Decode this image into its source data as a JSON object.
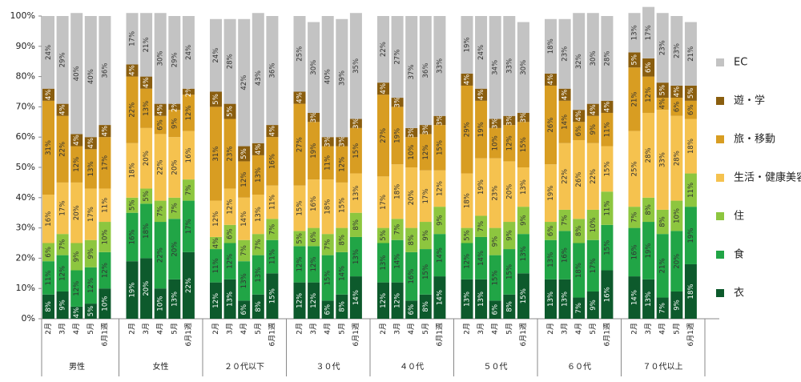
{
  "chart_data": {
    "type": "stacked_bar",
    "groups": [
      "男性",
      "女性",
      "２０代以下",
      "３０代",
      "４０代",
      "５０代",
      "６０代",
      "７０代以上"
    ],
    "categories": [
      "2月",
      "3月",
      "4月",
      "5月",
      "6月1週",
      "2月",
      "3月",
      "4月",
      "5月",
      "6月1週",
      "2月",
      "3月",
      "4月",
      "5月",
      "6月1週",
      "2月",
      "3月",
      "4月",
      "5月",
      "6月1週",
      "2月",
      "3月",
      "4月",
      "5月",
      "6月1週",
      "2月",
      "3月",
      "4月",
      "5月",
      "6月1週",
      "2月",
      "3月",
      "4月",
      "5月",
      "6月1週",
      "2月",
      "3月",
      "4月",
      "5月",
      "6月1週"
    ],
    "ylim": [
      0,
      100
    ],
    "yticks": [
      {
        "value": 0,
        "label": "0%"
      },
      {
        "value": 10,
        "label": "10%"
      },
      {
        "value": 20,
        "label": "20%"
      },
      {
        "value": 30,
        "label": "30%"
      },
      {
        "value": 40,
        "label": "40%"
      },
      {
        "value": 50,
        "label": "50%"
      },
      {
        "value": 60,
        "label": "60%"
      },
      {
        "value": 70,
        "label": "70%"
      },
      {
        "value": 80,
        "label": "80%"
      },
      {
        "value": 90,
        "label": "90%"
      },
      {
        "value": 100,
        "label": "100%"
      }
    ],
    "series": [
      {
        "name": "衣",
        "color": "#0d5a2c",
        "values": [
          8,
          9,
          4,
          5,
          10,
          19,
          20,
          10,
          13,
          22,
          12,
          13,
          6,
          8,
          15,
          12,
          12,
          6,
          8,
          14,
          12,
          12,
          6,
          8,
          14,
          13,
          13,
          6,
          8,
          15,
          13,
          13,
          7,
          9,
          16,
          14,
          13,
          7,
          9,
          18
        ],
        "value_labels": [
          "8%",
          "9%",
          "4%",
          "5%",
          "10%",
          "19%",
          "20%",
          "10%",
          "13%",
          "22%",
          "12%",
          "13%",
          "6%",
          "8%",
          "15%",
          "12%",
          "12%",
          "6%",
          "8%",
          "14%",
          "12%",
          "12%",
          "6%",
          "8%",
          "14%",
          "13%",
          "13%",
          "6%",
          "8%",
          "15%",
          "13%",
          "13%",
          "7%",
          "9%",
          "16%",
          "14%",
          "13%",
          "7%",
          "9%",
          "18%"
        ]
      },
      {
        "name": "食",
        "color": "#21a546",
        "values": [
          11,
          12,
          12,
          12,
          12,
          16,
          18,
          22,
          20,
          17,
          11,
          12,
          13,
          13,
          11,
          12,
          12,
          15,
          14,
          13,
          13,
          14,
          16,
          15,
          14,
          12,
          14,
          15,
          15,
          13,
          13,
          16,
          18,
          17,
          15,
          16,
          19,
          21,
          20,
          19
        ],
        "value_labels": [
          "11%",
          "12%",
          "12%",
          "12%",
          "12%",
          "16%",
          "18%",
          "22%",
          "20%",
          "17%",
          "11%",
          "12%",
          "13%",
          "13%",
          "11%",
          "12%",
          "12%",
          "15%",
          "14%",
          "13%",
          "13%",
          "14%",
          "16%",
          "15%",
          "14%",
          "12%",
          "14%",
          "15%",
          "15%",
          "13%",
          "13%",
          "16%",
          "18%",
          "17%",
          "15%",
          "16%",
          "19%",
          "21%",
          "20%",
          "19%"
        ]
      },
      {
        "name": "住",
        "color": "#8dc63f",
        "values": [
          6,
          7,
          9,
          9,
          10,
          5,
          5,
          7,
          7,
          7,
          4,
          6,
          7,
          7,
          7,
          5,
          6,
          7,
          8,
          8,
          5,
          7,
          8,
          9,
          9,
          5,
          7,
          9,
          9,
          9,
          6,
          7,
          8,
          10,
          11,
          7,
          8,
          8,
          10,
          11
        ],
        "value_labels": [
          "6%",
          "7%",
          "9%",
          "9%",
          "10%",
          "5%",
          "5%",
          "7%",
          "7%",
          "7%",
          "4%",
          "6%",
          "7%",
          "7%",
          "7%",
          "5%",
          "6%",
          "7%",
          "8%",
          "8%",
          "5%",
          "7%",
          "8%",
          "9%",
          "9%",
          "5%",
          "7%",
          "9%",
          "9%",
          "9%",
          "6%",
          "7%",
          "8%",
          "10%",
          "11%",
          "7%",
          "8%",
          "8%",
          "10%",
          "11%"
        ]
      },
      {
        "name": "生活・健康美容",
        "color": "#f5c24f",
        "values": [
          16,
          17,
          20,
          17,
          11,
          18,
          20,
          22,
          20,
          16,
          12,
          12,
          14,
          13,
          11,
          15,
          16,
          18,
          15,
          13,
          17,
          18,
          20,
          17,
          12,
          18,
          19,
          23,
          20,
          13,
          19,
          22,
          26,
          22,
          15,
          25,
          28,
          33,
          28,
          18
        ],
        "value_labels": [
          "16%",
          "17%",
          "20%",
          "17%",
          "11%",
          "18%",
          "20%",
          "22%",
          "20%",
          "16%",
          "12%",
          "12%",
          "14%",
          "13%",
          "11%",
          "15%",
          "16%",
          "18%",
          "15%",
          "13%",
          "17%",
          "18%",
          "20%",
          "17%",
          "12%",
          "18%",
          "19%",
          "23%",
          "20%",
          "13%",
          "19%",
          "22%",
          "26%",
          "22%",
          "15%",
          "25%",
          "28%",
          "33%",
          "28%",
          "18%"
        ]
      },
      {
        "name": "旅・移動",
        "color": "#d89d22",
        "values": [
          31,
          22,
          12,
          13,
          17,
          22,
          13,
          6,
          9,
          12,
          31,
          23,
          12,
          13,
          16,
          27,
          19,
          11,
          12,
          15,
          27,
          19,
          10,
          12,
          15,
          29,
          19,
          10,
          12,
          15,
          26,
          14,
          6,
          9,
          11,
          21,
          12,
          4,
          6,
          6
        ],
        "value_labels": [
          "31%",
          "22%",
          "12%",
          "13%",
          "17%",
          "22%",
          "13%",
          "6%",
          "9%",
          "12%",
          "31%",
          "23%",
          "12%",
          "13%",
          "16%",
          "27%",
          "19%",
          "11%",
          "12%",
          "15%",
          "27%",
          "19%",
          "10%",
          "12%",
          "15%",
          "29%",
          "19%",
          "10%",
          "12%",
          "15%",
          "26%",
          "14%",
          "6%",
          "9%",
          "11%",
          "21%",
          "12%",
          "4%",
          "6%",
          "6%"
        ]
      },
      {
        "name": "遊・学",
        "color": "#8a5e0f",
        "values": [
          4,
          4,
          4,
          4,
          4,
          4,
          4,
          4,
          2,
          2,
          5,
          5,
          5,
          4,
          4,
          4,
          3,
          3,
          3,
          3,
          4,
          3,
          3,
          3,
          3,
          4,
          4,
          3,
          3,
          3,
          4,
          4,
          4,
          4,
          4,
          5,
          6,
          5,
          4,
          5
        ],
        "value_labels": [
          "4%",
          "4%",
          "4%",
          "4%",
          "4%",
          "4%",
          "4%",
          "4%",
          "2%",
          "2%",
          "5%",
          "5%",
          "5%",
          "4%",
          "4%",
          "4%",
          "3%",
          "3%",
          "3%",
          "3%",
          "4%",
          "3%",
          "3%",
          "3%",
          "3%",
          "4%",
          "4%",
          "3%",
          "3%",
          "3%",
          "4%",
          "4%",
          "4%",
          "4%",
          "4%",
          "5%",
          "6%",
          "5%",
          "4%",
          "5%"
        ]
      },
      {
        "name": "EC",
        "color": "#c3c3c3",
        "values": [
          24,
          29,
          40,
          40,
          36,
          17,
          21,
          30,
          29,
          24,
          24,
          28,
          42,
          43,
          36,
          25,
          30,
          40,
          39,
          35,
          22,
          27,
          37,
          36,
          33,
          19,
          24,
          34,
          33,
          30,
          18,
          23,
          32,
          30,
          28,
          13,
          17,
          23,
          23,
          21
        ],
        "value_labels": [
          "24%",
          "29%",
          "40%",
          "40%",
          "36%",
          "17%",
          "21%",
          "30%",
          "29%",
          "24%",
          "24%",
          "28%",
          "42%",
          "43%",
          "36%",
          "25%",
          "30%",
          "40%",
          "39%",
          "35%",
          "22%",
          "27%",
          "37%",
          "36%",
          "33%",
          "19%",
          "24%",
          "34%",
          "33%",
          "30%",
          "18%",
          "23%",
          "32%",
          "30%",
          "28%",
          "13%",
          "17%",
          "23%",
          "23%",
          "21%"
        ]
      }
    ]
  }
}
